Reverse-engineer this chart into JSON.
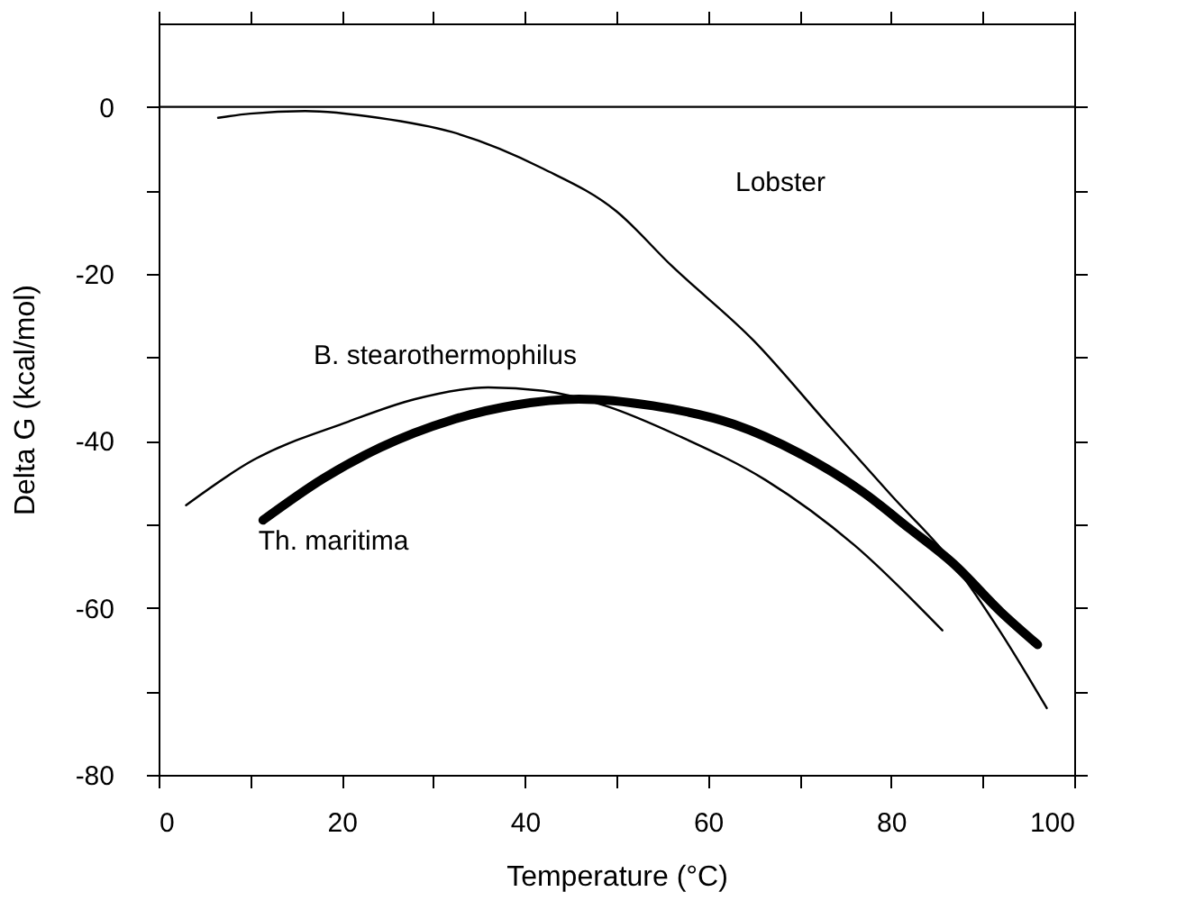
{
  "chart_data": {
    "type": "line",
    "xlabel": "Temperature (°C)",
    "ylabel": "Delta G (kcal/mol)",
    "xlim": [
      0,
      100
    ],
    "ylim": [
      -80,
      10
    ],
    "xticks": [
      0,
      {
        "value": 10,
        "label": null
      },
      20,
      {
        "value": 30,
        "label": null
      },
      40,
      {
        "value": 50,
        "label": null
      },
      60,
      {
        "value": 70,
        "label": null
      },
      80,
      {
        "value": 90,
        "label": null
      },
      100
    ],
    "yticks": [
      -80,
      {
        "value": -70,
        "label": null
      },
      -60,
      {
        "value": -50,
        "label": null
      },
      -40,
      {
        "value": -30,
        "label": null
      },
      -20,
      {
        "value": -10,
        "label": null
      },
      0
    ],
    "grid": false,
    "marker": "none",
    "line_style": "solid",
    "ref_lines": [
      {
        "axis": "y",
        "value": 0,
        "color": "#000000"
      }
    ],
    "annotations": [
      "Lobster",
      "B. stearothermophilus",
      "Th. maritima"
    ],
    "series": [
      {
        "color": "#000000",
        "x": [
          6.5,
          10,
          16,
          24,
          32,
          42,
          50,
          56,
          65,
          73.4,
          80,
          86.8,
          92,
          97
        ],
        "values": [
          -1.3,
          -0.8,
          -0.5,
          -1.3,
          -3,
          -7.4,
          -12.5,
          -19,
          -28,
          -38.4,
          -46.5,
          -54.7,
          -63,
          -72
        ]
      },
      {
        "color": "#000000",
        "x": [
          3,
          10,
          20.7,
          28,
          36,
          42,
          48.8,
          57,
          66.3,
          76,
          85.6
        ],
        "values": [
          -47.7,
          -42.5,
          -37.7,
          -35,
          -33.6,
          -34,
          -35.8,
          -39.5,
          -44.7,
          -52.5,
          -62.7
        ]
      },
      {
        "color": "#000000",
        "x": [
          11.4,
          18,
          24.2,
          32,
          39,
          45.9,
          54,
          62.8,
          70,
          77,
          82,
          86.8,
          92,
          96
        ],
        "values": [
          -49.5,
          -44.5,
          -40.8,
          -37.5,
          -35.7,
          -35,
          -35.8,
          -38,
          -41.5,
          -46.2,
          -50.5,
          -54.7,
          -60.5,
          -64.4
        ]
      }
    ]
  }
}
